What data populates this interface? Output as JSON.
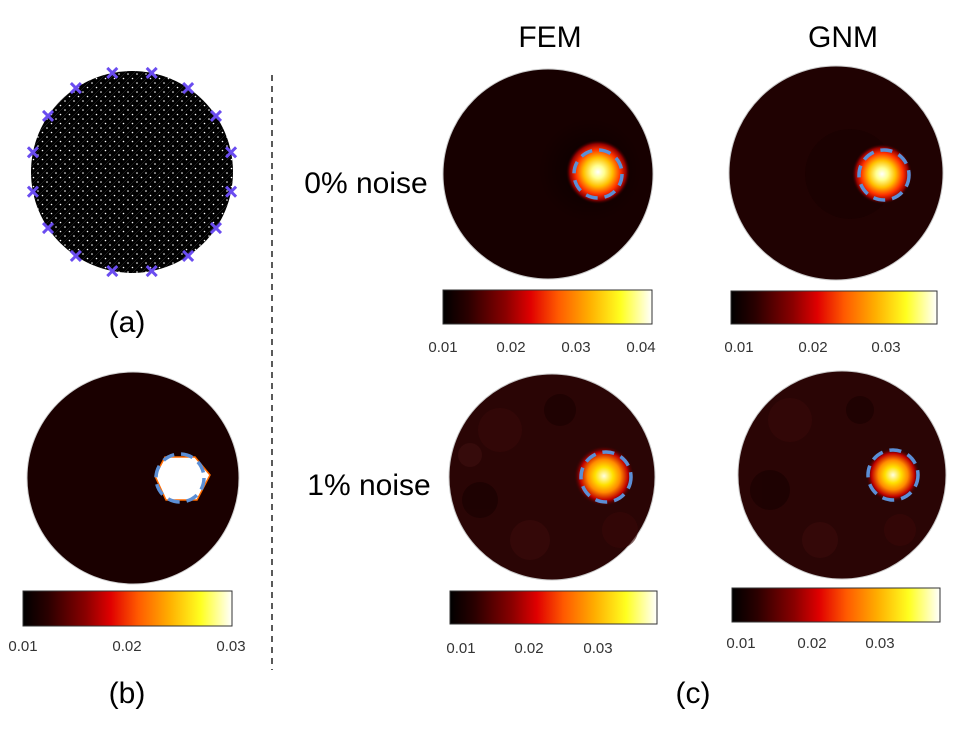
{
  "labels": {
    "col_fem": "FEM",
    "col_gnm": "GNM",
    "row_0": "0% noise",
    "row_1": "1% noise",
    "panel_a": "(a)",
    "panel_b": "(b)",
    "panel_c": "(c)"
  },
  "colorbars": {
    "b": [
      "0.01",
      "0.02",
      "0.03"
    ],
    "fem0": [
      "0.01",
      "0.02",
      "0.03",
      "0.04"
    ],
    "gnm0": [
      "0.01",
      "0.02",
      "0.03"
    ],
    "fem1": [
      "0.01",
      "0.02",
      "0.03"
    ],
    "gnm1": [
      "0.01",
      "0.02",
      "0.03"
    ]
  },
  "colors": {
    "background_disk": "#1a0000",
    "electrode": "#6a4cf0",
    "marker": "#5b8fd6"
  },
  "electrodes": {
    "count": 16
  }
}
